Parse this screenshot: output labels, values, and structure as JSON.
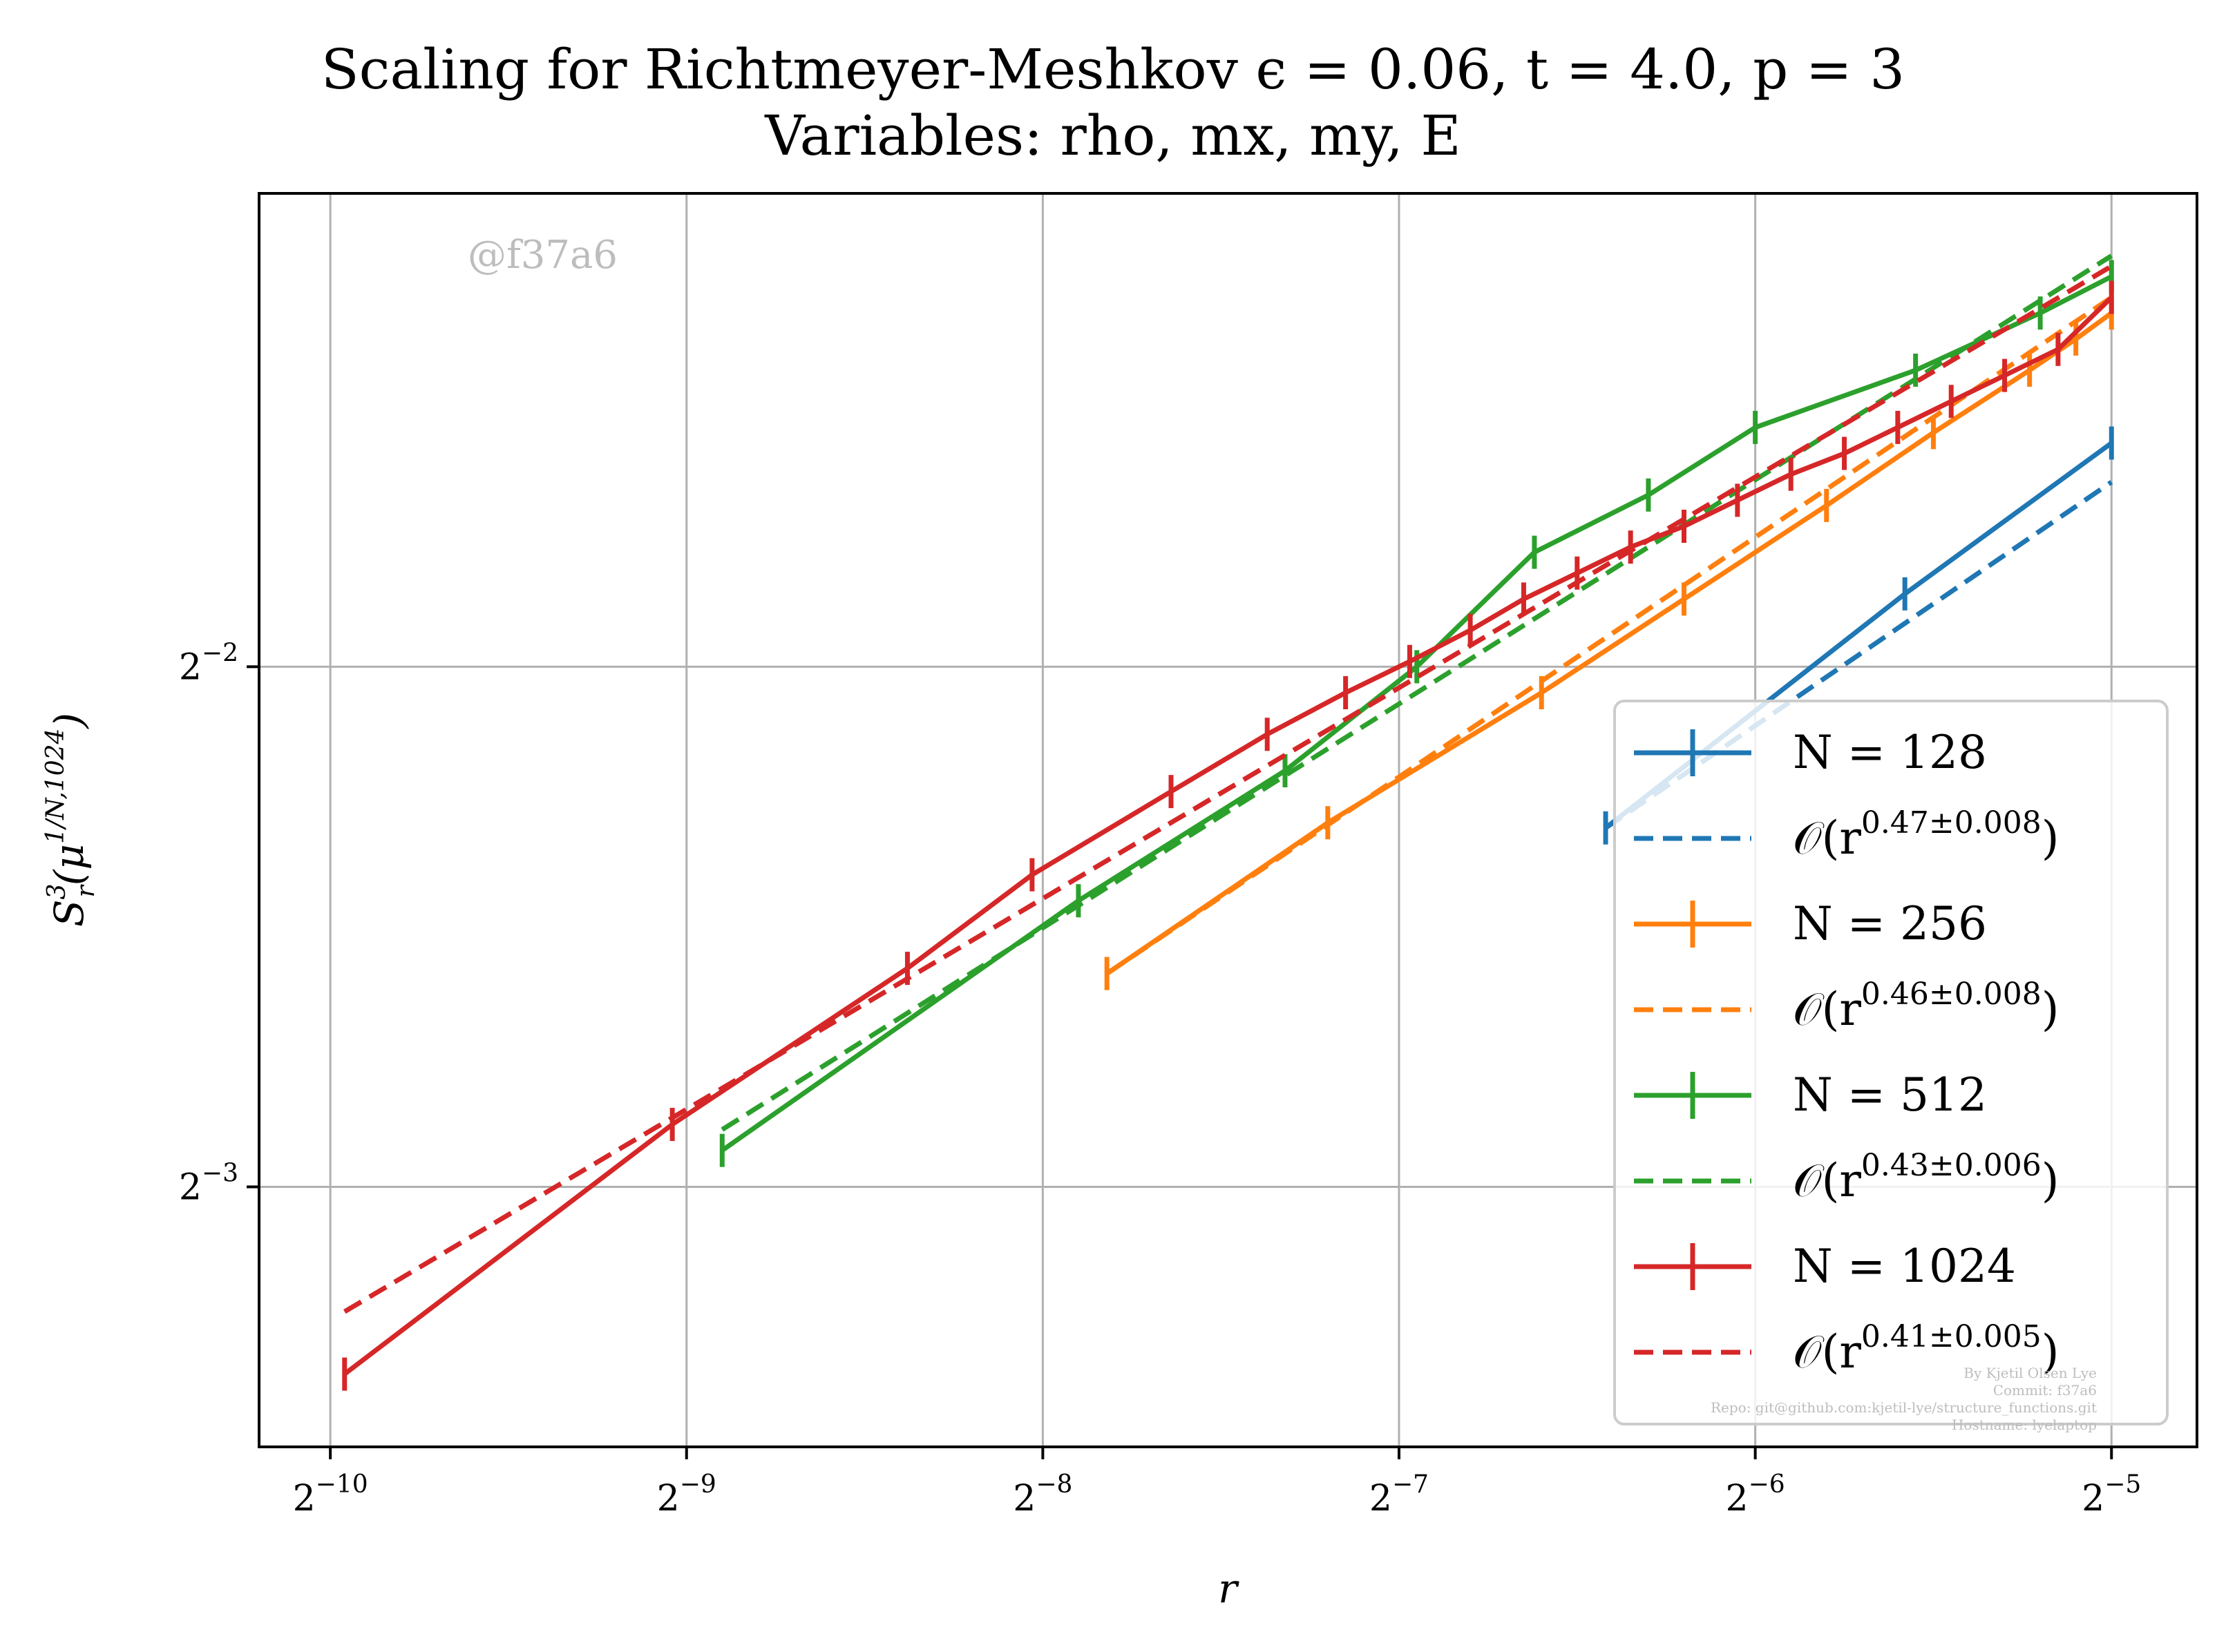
{
  "chart_data": {
    "type": "line",
    "title": "Scaling for Richtmeyer-Meshkov ϵ = 0.06, t = 4.0, p = 3",
    "subtitle": "Variables: rho, mx, my, E",
    "xlabel": "r",
    "ylabel_main": "S",
    "ylabel_sup": "3",
    "ylabel_sub": "r",
    "ylabel_arg": "(μ",
    "ylabel_arg_sup": "1/N,1024",
    "ylabel_close": ")",
    "xscale": "log2",
    "yscale": "log2",
    "xlim_log2": [
      -10.2,
      -4.76
    ],
    "ylim_log2": [
      -3.5,
      -1.09
    ],
    "grid": true,
    "legend_position": "lower-right",
    "x_ticks": [
      {
        "base": "2",
        "exp": "−10",
        "value_log2": -10
      },
      {
        "base": "2",
        "exp": "−9",
        "value_log2": -9
      },
      {
        "base": "2",
        "exp": "−8",
        "value_log2": -8
      },
      {
        "base": "2",
        "exp": "−7",
        "value_log2": -7
      },
      {
        "base": "2",
        "exp": "−6",
        "value_log2": -6
      },
      {
        "base": "2",
        "exp": "−5",
        "value_log2": -5
      }
    ],
    "y_ticks": [
      {
        "base": "2",
        "exp": "−2",
        "value_log2": -2
      },
      {
        "base": "2",
        "exp": "−3",
        "value_log2": -3
      }
    ],
    "series": [
      {
        "name": "N = 128",
        "legend_main": "N = 128",
        "color": "#1f77b4",
        "x_log2": [
          -6.42,
          -5.58,
          -5.0
        ],
        "y_log2": [
          -2.31,
          -1.86,
          -1.57
        ],
        "fit_label_main": "𝒪(r",
        "fit_label_sup": "0.47±0.008",
        "fit_label_close": ")",
        "fit": {
          "x_log2": [
            -6.42,
            -5.0
          ],
          "y_log2": [
            -2.31,
            -1.645
          ]
        }
      },
      {
        "name": "N = 256",
        "legend_main": "N = 256",
        "color": "#ff7f0e",
        "x_log2": [
          -7.82,
          -7.2,
          -6.6,
          -6.2,
          -5.8,
          -5.5,
          -5.23,
          -5.1,
          -5.0
        ],
        "y_log2": [
          -2.59,
          -2.3,
          -2.05,
          -1.87,
          -1.69,
          -1.55,
          -1.43,
          -1.37,
          -1.32
        ],
        "fit_label_main": "𝒪(r",
        "fit_label_sup": "0.46±0.008",
        "fit_label_close": ")",
        "fit": {
          "x_log2": [
            -7.82,
            -5.0
          ],
          "y_log2": [
            -2.59,
            -1.29
          ]
        }
      },
      {
        "name": "N = 512",
        "legend_main": "N = 512",
        "color": "#2ca02c",
        "x_log2": [
          -8.9,
          -7.9,
          -7.32,
          -6.95,
          -6.62,
          -6.3,
          -6.0,
          -5.55,
          -5.2,
          -5.0
        ],
        "y_log2": [
          -2.93,
          -2.45,
          -2.2,
          -2.0,
          -1.78,
          -1.67,
          -1.54,
          -1.43,
          -1.32,
          -1.25
        ],
        "fit_label_main": "𝒪(r",
        "fit_label_sup": "0.43±0.006",
        "fit_label_close": ")",
        "fit": {
          "x_log2": [
            -8.9,
            -5.0
          ],
          "y_log2": [
            -2.89,
            -1.21
          ]
        }
      },
      {
        "name": "N = 1024",
        "legend_main": "N = 1024",
        "color": "#d62728",
        "x_log2": [
          -9.96,
          -9.04,
          -8.38,
          -8.03,
          -7.64,
          -7.37,
          -7.15,
          -6.97,
          -6.8,
          -6.65,
          -6.5,
          -6.35,
          -6.2,
          -6.05,
          -5.9,
          -5.75,
          -5.6,
          -5.45,
          -5.3,
          -5.15,
          -5.0
        ],
        "y_log2": [
          -3.36,
          -2.88,
          -2.58,
          -2.4,
          -2.24,
          -2.13,
          -2.05,
          -1.99,
          -1.93,
          -1.87,
          -1.82,
          -1.77,
          -1.73,
          -1.68,
          -1.63,
          -1.59,
          -1.54,
          -1.49,
          -1.44,
          -1.39,
          -1.29
        ],
        "fit_label_main": "𝒪(r",
        "fit_label_sup": "0.41±0.005",
        "fit_label_close": ")",
        "fit": {
          "x_log2": [
            -9.96,
            -5.0
          ],
          "y_log2": [
            -3.24,
            -1.23
          ]
        }
      }
    ]
  },
  "watermark": "@f37a6",
  "footer_lines": [
    "By Kjetil Olsen Lye",
    "Commit: f37a6",
    "Repo: git@github.com:kjetil-lye/structure_functions.git",
    "Hostname: lyelaptop"
  ]
}
